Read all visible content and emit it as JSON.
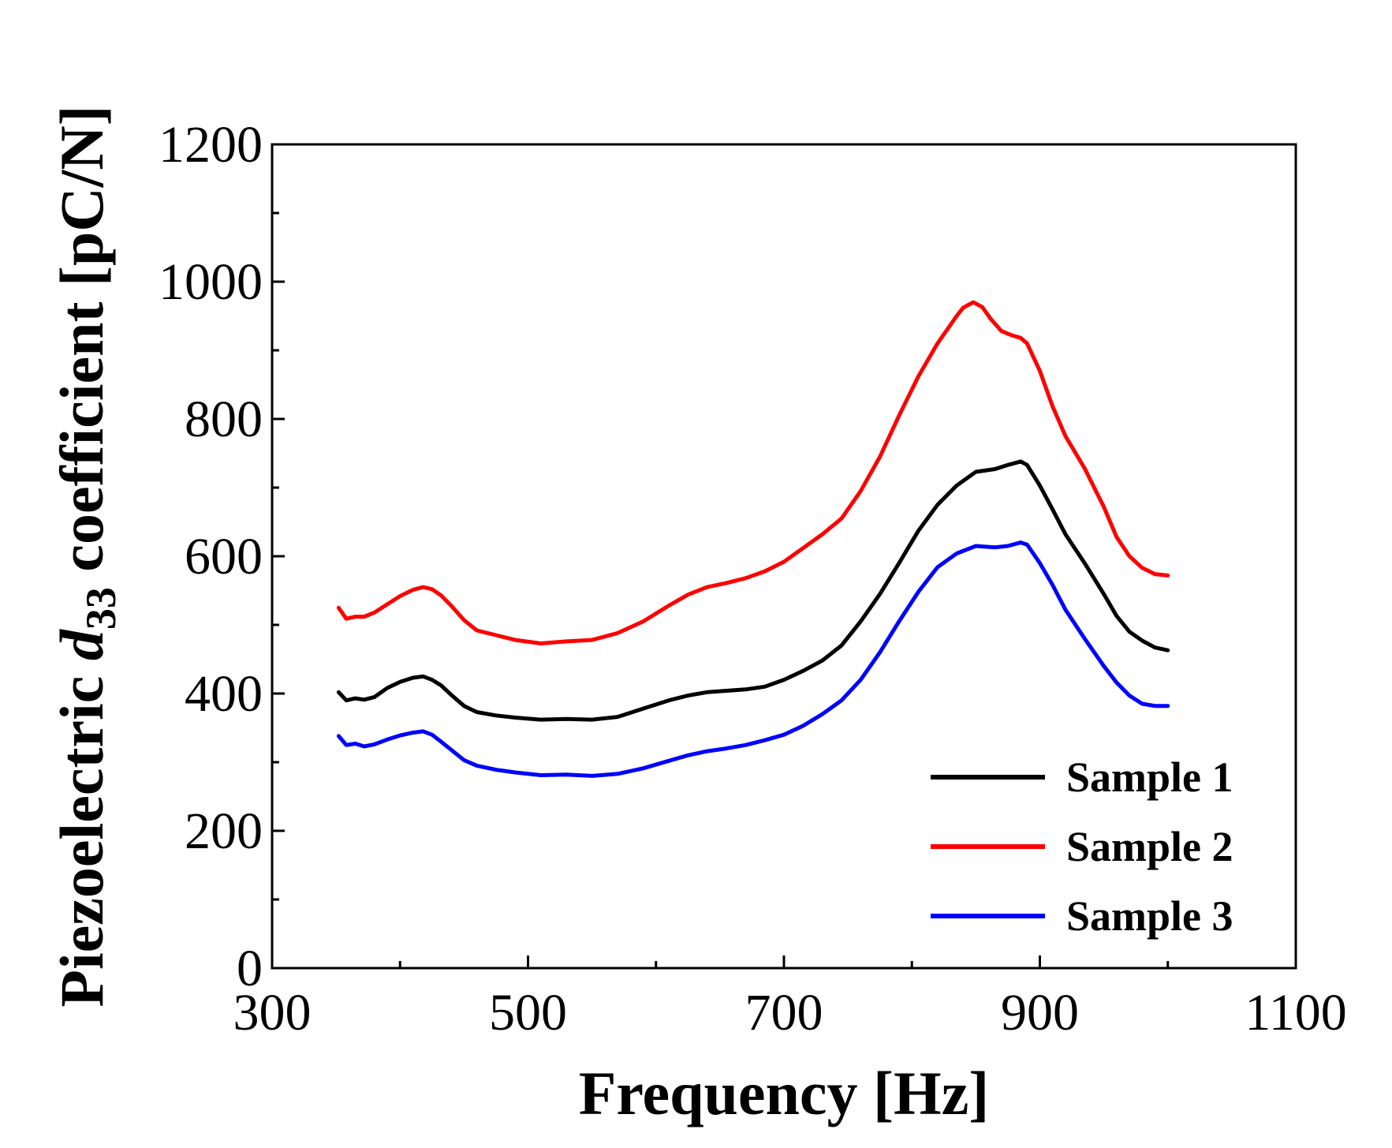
{
  "chart_data": {
    "type": "line",
    "title": "",
    "xlabel": "Frequency [Hz]",
    "ylabel": {
      "prefix": "Piezoelectric ",
      "symbol": "d",
      "subscript": "33",
      "suffix": " coefficient [pC/N]"
    },
    "xlim": [
      300,
      1100
    ],
    "ylim": [
      0,
      1200
    ],
    "xticks": [
      300,
      500,
      700,
      900,
      1100
    ],
    "yticks": [
      0,
      200,
      400,
      600,
      800,
      1000,
      1200
    ],
    "xminor": [
      400,
      600,
      800,
      1000
    ],
    "yminor": [
      100,
      300,
      500,
      700,
      900,
      1100
    ],
    "legend_position": "bottom-right",
    "grid": false,
    "series": [
      {
        "name": "Sample 1",
        "color": "#000000",
        "x": [
          352,
          358,
          365,
          372,
          380,
          390,
          400,
          410,
          418,
          425,
          432,
          440,
          450,
          460,
          475,
          490,
          510,
          530,
          550,
          570,
          590,
          610,
          625,
          640,
          655,
          670,
          685,
          700,
          715,
          730,
          745,
          760,
          775,
          790,
          805,
          820,
          835,
          850,
          865,
          875,
          885,
          890,
          900,
          910,
          920,
          935,
          950,
          960,
          970,
          980,
          990,
          1000
        ],
        "y": [
          402,
          390,
          393,
          391,
          395,
          408,
          417,
          423,
          425,
          420,
          412,
          398,
          382,
          373,
          368,
          365,
          362,
          363,
          362,
          366,
          378,
          390,
          397,
          402,
          404,
          406,
          410,
          420,
          433,
          448,
          470,
          505,
          545,
          590,
          637,
          675,
          703,
          723,
          727,
          733,
          738,
          733,
          703,
          668,
          632,
          590,
          545,
          513,
          490,
          477,
          467,
          463
        ]
      },
      {
        "name": "Sample 2",
        "color": "#ff0000",
        "x": [
          352,
          358,
          365,
          372,
          380,
          390,
          400,
          410,
          418,
          425,
          432,
          440,
          450,
          460,
          475,
          490,
          510,
          530,
          550,
          570,
          590,
          610,
          625,
          640,
          655,
          670,
          685,
          700,
          715,
          730,
          745,
          760,
          775,
          790,
          805,
          820,
          835,
          840,
          848,
          855,
          862,
          870,
          878,
          885,
          890,
          900,
          910,
          920,
          935,
          950,
          960,
          970,
          980,
          990,
          1000
        ],
        "y": [
          525,
          509,
          512,
          512,
          518,
          530,
          542,
          551,
          555,
          552,
          543,
          528,
          507,
          492,
          485,
          478,
          473,
          476,
          478,
          488,
          505,
          528,
          544,
          555,
          561,
          568,
          578,
          592,
          612,
          632,
          655,
          695,
          745,
          805,
          862,
          910,
          950,
          962,
          970,
          963,
          945,
          928,
          922,
          918,
          910,
          870,
          818,
          775,
          728,
          672,
          628,
          600,
          583,
          574,
          572
        ]
      },
      {
        "name": "Sample 3",
        "color": "#0000ff",
        "x": [
          352,
          358,
          365,
          372,
          380,
          390,
          400,
          410,
          418,
          425,
          432,
          440,
          450,
          460,
          475,
          490,
          510,
          530,
          550,
          570,
          590,
          610,
          625,
          640,
          655,
          670,
          685,
          700,
          715,
          730,
          745,
          760,
          775,
          790,
          805,
          820,
          835,
          850,
          865,
          875,
          885,
          890,
          900,
          910,
          920,
          935,
          950,
          960,
          970,
          980,
          990,
          1000
        ],
        "y": [
          338,
          325,
          327,
          323,
          326,
          333,
          339,
          343,
          345,
          340,
          330,
          318,
          303,
          295,
          289,
          285,
          281,
          282,
          280,
          283,
          291,
          302,
          310,
          316,
          320,
          325,
          332,
          340,
          353,
          370,
          390,
          420,
          460,
          505,
          548,
          584,
          604,
          615,
          613,
          615,
          620,
          617,
          590,
          558,
          522,
          480,
          440,
          416,
          397,
          385,
          382,
          382
        ]
      }
    ]
  }
}
